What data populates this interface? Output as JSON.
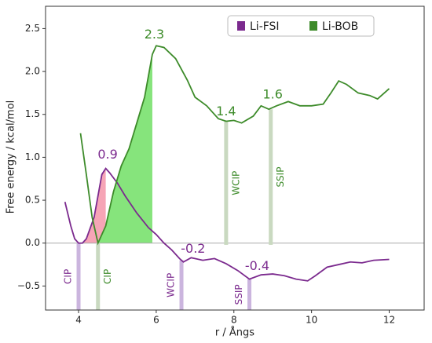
{
  "chart_data": {
    "type": "line",
    "xlabel": "r / Ångs",
    "ylabel": "Free energy / kcal/mol",
    "xlim": [
      3.15,
      12.9
    ],
    "ylim": [
      -0.78,
      2.76
    ],
    "xticks": [
      4,
      6,
      8,
      10,
      12
    ],
    "yticks": [
      {
        "value": -0.5,
        "label": "−0.5"
      },
      {
        "value": 0,
        "label": "0.0"
      },
      0.5,
      {
        "value": 1,
        "label": "1.0"
      },
      1.5,
      {
        "value": 2,
        "label": "2.0"
      },
      2.5
    ],
    "zero_line": true,
    "legend": "upper right",
    "series": [
      {
        "name": "Li-FSI",
        "color": "#7b2a8e",
        "fill": "#f6a5b6",
        "shade": [
          4.05,
          4.7
        ],
        "x": [
          3.65,
          3.8,
          3.9,
          4.0,
          4.1,
          4.2,
          4.4,
          4.6,
          4.7,
          4.8,
          5.0,
          5.2,
          5.5,
          5.8,
          6.0,
          6.2,
          6.4,
          6.6,
          6.7,
          6.9,
          7.2,
          7.5,
          7.8,
          8.1,
          8.4,
          8.7,
          9.0,
          9.3,
          9.6,
          9.9,
          10.1,
          10.4,
          10.7,
          11.0,
          11.3,
          11.6,
          12.0
        ],
        "values": [
          0.48,
          0.2,
          0.05,
          0.0,
          0.0,
          0.05,
          0.3,
          0.8,
          0.87,
          0.82,
          0.7,
          0.55,
          0.35,
          0.18,
          0.1,
          0.0,
          -0.08,
          -0.18,
          -0.22,
          -0.17,
          -0.2,
          -0.18,
          -0.24,
          -0.32,
          -0.42,
          -0.37,
          -0.36,
          -0.38,
          -0.42,
          -0.44,
          -0.38,
          -0.28,
          -0.25,
          -0.22,
          -0.23,
          -0.2,
          -0.19
        ]
      },
      {
        "name": "Li-BOB",
        "color": "#3d8b2a",
        "fill": "#86e47c",
        "shade": [
          4.5,
          5.95
        ],
        "x": [
          4.05,
          4.2,
          4.35,
          4.5,
          4.7,
          4.9,
          5.1,
          5.3,
          5.5,
          5.7,
          5.9,
          6.0,
          6.2,
          6.5,
          6.8,
          7.0,
          7.3,
          7.6,
          7.8,
          8.0,
          8.2,
          8.5,
          8.7,
          8.9,
          9.1,
          9.4,
          9.7,
          10.0,
          10.3,
          10.5,
          10.7,
          10.9,
          11.2,
          11.5,
          11.7,
          12.0
        ],
        "values": [
          1.28,
          0.8,
          0.3,
          0.0,
          0.2,
          0.6,
          0.9,
          1.1,
          1.4,
          1.7,
          2.2,
          2.3,
          2.28,
          2.15,
          1.9,
          1.7,
          1.6,
          1.45,
          1.42,
          1.43,
          1.4,
          1.48,
          1.6,
          1.56,
          1.6,
          1.65,
          1.6,
          1.6,
          1.62,
          1.75,
          1.89,
          1.85,
          1.75,
          1.72,
          1.68,
          1.8
        ]
      }
    ],
    "annotations": [
      {
        "label": "0.9",
        "value": 0.9,
        "x": 4.75,
        "series": 0
      },
      {
        "label": "2.3",
        "value": 2.3,
        "x": 5.95,
        "series": 1
      },
      {
        "label": "1.4",
        "value": 1.4,
        "x": 7.8,
        "series": 1
      },
      {
        "label": "1.6",
        "value": 1.6,
        "x": 9.0,
        "series": 1
      },
      {
        "label": "-0.2",
        "value": -0.2,
        "x": 6.95,
        "series": 0
      },
      {
        "label": "-0.4",
        "value": -0.4,
        "x": 8.6,
        "series": 0
      }
    ],
    "markers": [
      {
        "label": "CIP",
        "x": 4.0,
        "range": [
          0.0,
          -0.78
        ],
        "series": 0,
        "side": "left"
      },
      {
        "label": "CIP",
        "x": 4.5,
        "range": [
          0.0,
          -0.78
        ],
        "series": 1,
        "side": "right"
      },
      {
        "label": "WCIP",
        "x": 6.65,
        "range": [
          -0.2,
          -0.78
        ],
        "series": 0,
        "side": "left"
      },
      {
        "label": "WCIP",
        "x": 7.8,
        "range": [
          1.42,
          -0.02
        ],
        "series": 1,
        "side": "right"
      },
      {
        "label": "SSIP",
        "x": 8.4,
        "range": [
          -0.42,
          -0.78
        ],
        "series": 0,
        "side": "left"
      },
      {
        "label": "SSIP",
        "x": 8.95,
        "range": [
          1.56,
          -0.02
        ],
        "series": 1,
        "side": "right"
      }
    ]
  }
}
